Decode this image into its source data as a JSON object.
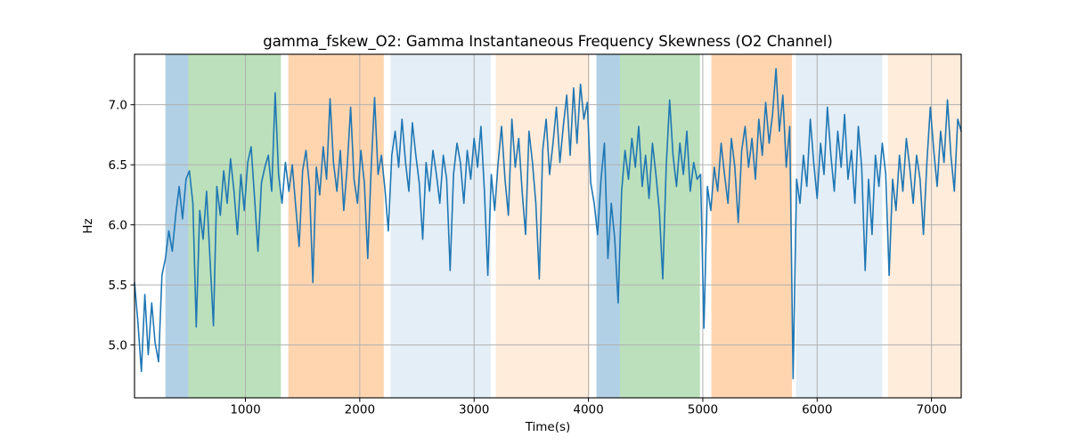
{
  "figure": {
    "background": "#ffffff",
    "text_color": "#000000",
    "spine_color": "#000000"
  },
  "chart_data": {
    "type": "line",
    "title": "gamma_fskew_O2: Gamma Instantaneous Frequency Skewness (O2 Channel)",
    "xlabel": "Time(s)",
    "ylabel": "Hz",
    "xlim": [
      30,
      7260
    ],
    "ylim": [
      4.56,
      7.42
    ],
    "grid": true,
    "grid_color": "#b0b0b0",
    "line_color": "#1f77b4",
    "line_width": 1.6,
    "legend": "none",
    "xticks": {
      "values": [
        1000,
        2000,
        3000,
        4000,
        5000,
        6000,
        7000
      ],
      "labels": [
        "1000",
        "2000",
        "3000",
        "4000",
        "5000",
        "6000",
        "7000"
      ]
    },
    "yticks": {
      "values": [
        5.0,
        5.5,
        6.0,
        6.5,
        7.0
      ],
      "labels": [
        "5.0",
        "5.5",
        "6.0",
        "6.5",
        "7.0"
      ]
    },
    "bands": [
      {
        "start": 300,
        "end": 500,
        "color": "rgba(31,119,180,0.35)"
      },
      {
        "start": 500,
        "end": 1310,
        "color": "rgba(44,160,44,0.32)"
      },
      {
        "start": 1375,
        "end": 2210,
        "color": "rgba(255,127,14,0.33)"
      },
      {
        "start": 2270,
        "end": 3145,
        "color": "rgba(31,119,180,0.12)"
      },
      {
        "start": 3190,
        "end": 4010,
        "color": "rgba(255,127,14,0.15)"
      },
      {
        "start": 4070,
        "end": 4275,
        "color": "rgba(31,119,180,0.35)"
      },
      {
        "start": 4275,
        "end": 4975,
        "color": "rgba(44,160,44,0.32)"
      },
      {
        "start": 5075,
        "end": 5780,
        "color": "rgba(255,127,14,0.33)"
      },
      {
        "start": 5815,
        "end": 6570,
        "color": "rgba(31,119,180,0.12)"
      },
      {
        "start": 6620,
        "end": 7260,
        "color": "rgba(255,127,14,0.15)"
      }
    ],
    "series": [
      {
        "name": "gamma_fskew_O2",
        "t_start": 30,
        "t_step": 30,
        "values": [
          5.52,
          5.18,
          4.78,
          5.42,
          4.92,
          5.35,
          5.02,
          4.86,
          5.58,
          5.72,
          5.95,
          5.78,
          6.08,
          6.32,
          6.05,
          6.38,
          6.45,
          6.18,
          5.15,
          6.12,
          5.88,
          6.28,
          5.72,
          5.16,
          6.32,
          6.08,
          6.45,
          6.18,
          6.55,
          6.28,
          5.92,
          6.42,
          6.12,
          6.52,
          6.65,
          6.22,
          5.78,
          6.35,
          6.48,
          6.58,
          6.28,
          7.1,
          6.42,
          6.18,
          6.52,
          6.28,
          6.5,
          6.15,
          5.82,
          6.45,
          6.62,
          6.32,
          5.52,
          6.48,
          6.25,
          6.65,
          6.38,
          7.05,
          6.52,
          6.28,
          6.62,
          6.12,
          6.48,
          6.98,
          6.38,
          6.18,
          6.62,
          6.35,
          5.72,
          6.48,
          7.06,
          6.42,
          6.58,
          6.3,
          5.95,
          6.58,
          6.78,
          6.48,
          6.88,
          6.52,
          6.28,
          6.85,
          6.58,
          6.35,
          5.88,
          6.52,
          6.28,
          6.62,
          6.42,
          6.18,
          6.58,
          6.38,
          5.62,
          6.42,
          6.68,
          6.52,
          6.18,
          6.62,
          6.38,
          6.72,
          6.48,
          6.82,
          6.28,
          5.58,
          6.42,
          6.12,
          6.52,
          6.82,
          6.38,
          6.08,
          6.88,
          6.48,
          6.72,
          6.28,
          5.92,
          6.78,
          6.52,
          6.18,
          5.55,
          6.62,
          6.88,
          6.42,
          6.68,
          6.98,
          6.52,
          6.82,
          7.08,
          6.58,
          7.14,
          6.68,
          7.17,
          6.88,
          7.02,
          6.35,
          6.18,
          5.92,
          6.38,
          6.68,
          5.72,
          6.18,
          5.88,
          5.35,
          6.28,
          6.62,
          6.38,
          6.72,
          6.48,
          6.82,
          6.32,
          6.58,
          6.22,
          6.68,
          6.42,
          6.12,
          5.55,
          6.48,
          7.04,
          6.58,
          6.32,
          6.68,
          6.42,
          6.78,
          6.28,
          6.52,
          6.38,
          6.42,
          5.14,
          6.32,
          6.12,
          6.48,
          6.28,
          6.68,
          6.42,
          6.18,
          6.72,
          6.48,
          6.02,
          6.62,
          6.82,
          6.48,
          6.72,
          6.38,
          6.88,
          6.58,
          7.02,
          6.68,
          6.92,
          7.3,
          6.78,
          7.08,
          6.48,
          6.82,
          4.72,
          6.38,
          6.18,
          6.58,
          6.32,
          6.88,
          6.52,
          6.22,
          6.68,
          6.42,
          6.98,
          6.58,
          6.28,
          6.78,
          6.48,
          6.92,
          6.38,
          6.62,
          6.18,
          6.82,
          6.48,
          5.62,
          6.38,
          5.92,
          6.58,
          6.32,
          6.68,
          6.42,
          5.58,
          6.38,
          6.12,
          6.58,
          6.28,
          6.72,
          6.48,
          6.18,
          6.58,
          6.38,
          5.92,
          6.52,
          6.98,
          6.62,
          6.32,
          6.78,
          6.52,
          7.04,
          6.58,
          6.28,
          6.88,
          6.78
        ]
      }
    ]
  }
}
